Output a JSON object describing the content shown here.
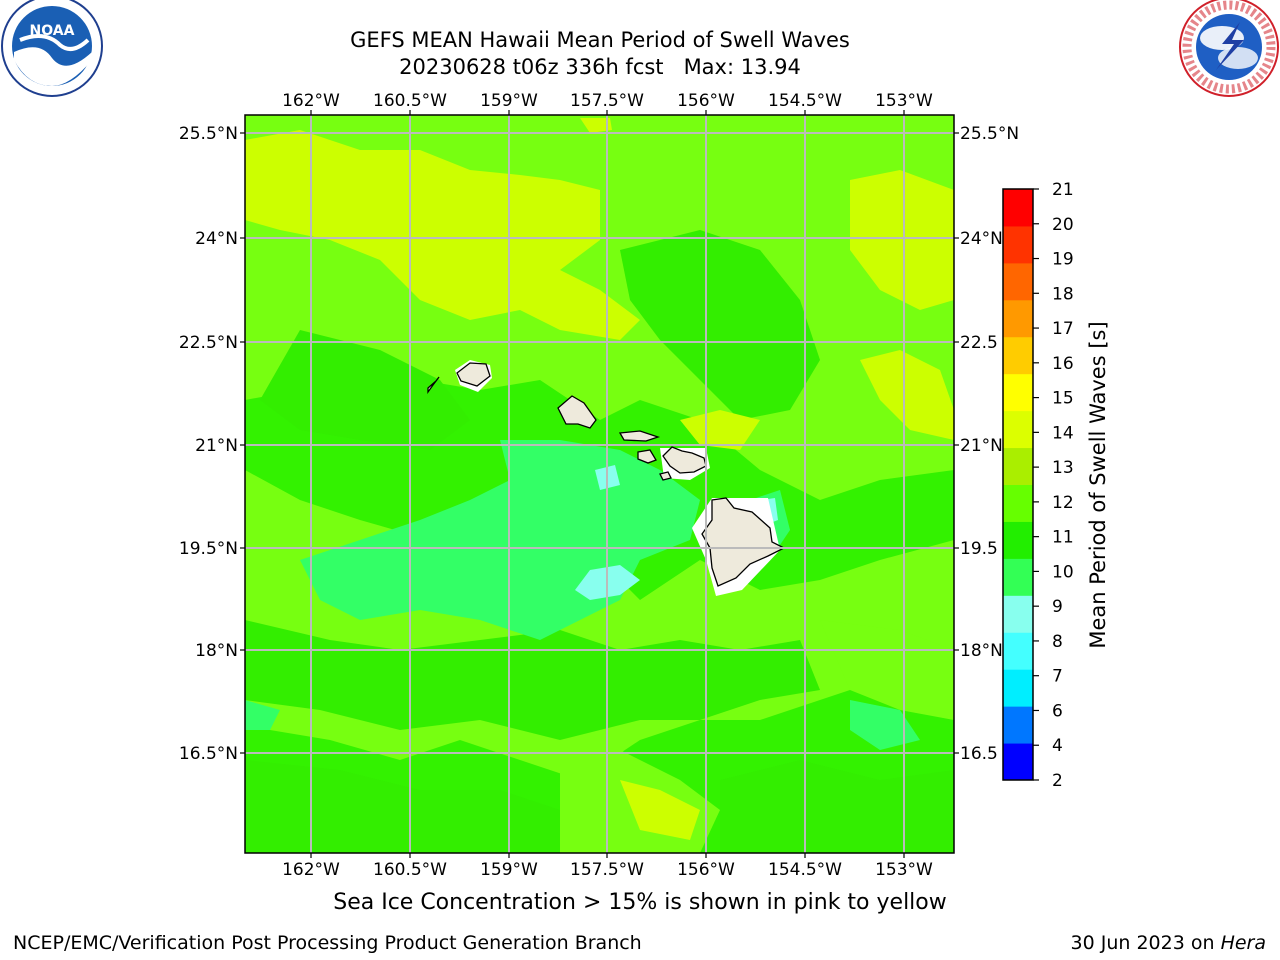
{
  "title": {
    "line1": "GEFS MEAN Hawaii Mean Period of Swell Waves",
    "line2": "20230628 t06z 336h fcst   Max: 13.94"
  },
  "map": {
    "lon_ticks": [
      "162°W",
      "160.5°W",
      "159°W",
      "157.5°W",
      "156°W",
      "154.5°W",
      "153°W"
    ],
    "lat_ticks": [
      "25.5°N",
      "24°N",
      "22.5°N",
      "21°N",
      "19.5°N",
      "18°N",
      "16.5°N"
    ],
    "lat_ticks_right": [
      "25.5°N",
      "24°N",
      "22.5",
      "21°N",
      "19.5",
      "18°N",
      "16.5"
    ],
    "islands": [
      "Niihau",
      "Kauai",
      "Oahu",
      "Molokai",
      "Lanai",
      "Maui",
      "Kahoolawe",
      "Hawaii"
    ]
  },
  "colorbar": {
    "label": "Mean Period of Swell Waves [s]",
    "ticks": [
      "2",
      "4",
      "6",
      "7",
      "8",
      "9",
      "10",
      "11",
      "12",
      "13",
      "14",
      "15",
      "16",
      "17",
      "18",
      "19",
      "20",
      "21"
    ],
    "colors": [
      "#0000ff",
      "#0077ff",
      "#00eeff",
      "#44ffff",
      "#88ffee",
      "#33ff55",
      "#22ee00",
      "#66ff00",
      "#aaee00",
      "#dcff00",
      "#ffff00",
      "#ffcc00",
      "#ff9900",
      "#ff6600",
      "#ff3300",
      "#ff0000"
    ]
  },
  "colors": {
    "field_base": "#33f200",
    "band_11_12": "#22ee00",
    "band_12_13": "#77ff11",
    "band_13_14": "#ccff00",
    "band_10_11": "#33ff66",
    "band_9_10": "#88ffee",
    "land": "#eeeadc",
    "grid": "#bbbbbb"
  },
  "logos": {
    "left_text": "NOAA",
    "right_text": "NATIONAL WEATHER SERVICE"
  },
  "note": "Sea Ice Concentration > 15% is shown in pink to yellow",
  "footer": {
    "left": "NCEP/EMC/Verification Post Processing Product Generation Branch",
    "right_date": "30 Jun 2023 on ",
    "right_machine": "Hera"
  }
}
